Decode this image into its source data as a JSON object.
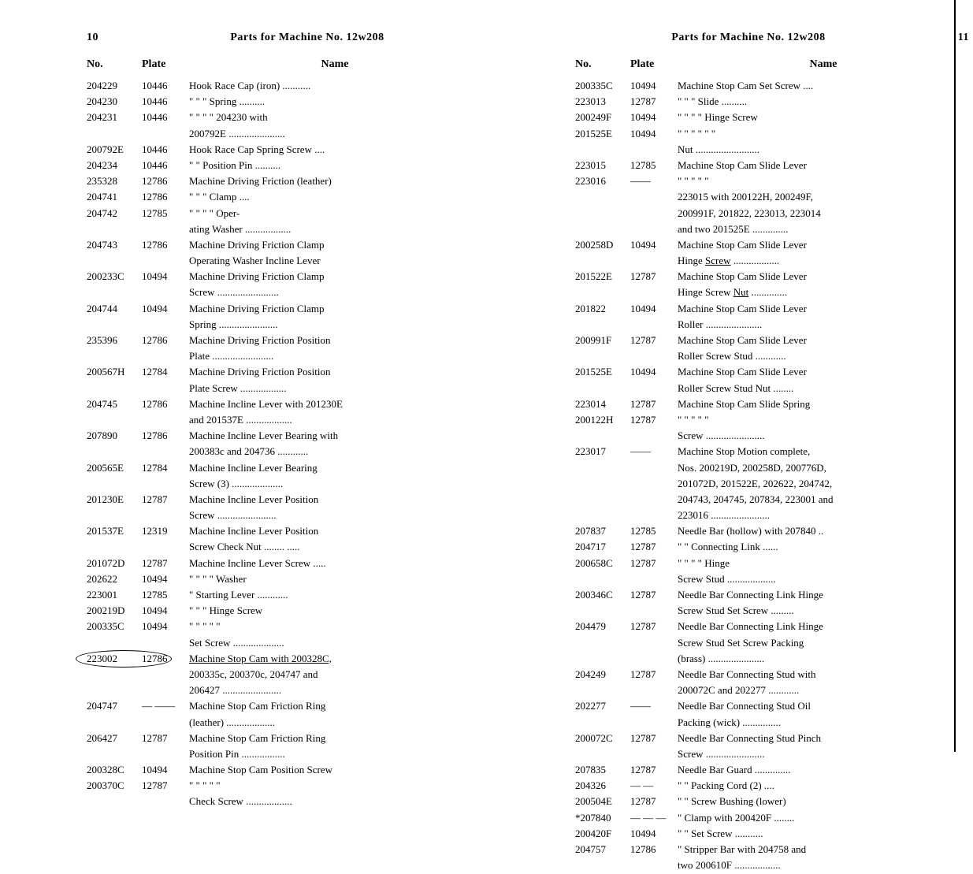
{
  "left": {
    "page_number": "10",
    "title": "Parts for Machine No. 12w208",
    "columns": {
      "no": "No.",
      "plate": "Plate",
      "name": "Name"
    },
    "rows": [
      {
        "no": "204229",
        "plate": "10446",
        "name": "Hook Race Cap (iron) ..........."
      },
      {
        "no": "204230",
        "plate": "10446",
        "name": "\"      \"      \"    Spring .........."
      },
      {
        "no": "204231",
        "plate": "10446",
        "name": "\"      \"      \"      \"    204230  with"
      },
      {
        "cont": "200792E ......................"
      },
      {
        "no": "200792E",
        "plate": "10446",
        "name": "Hook Race Cap Spring Screw ...."
      },
      {
        "no": "204234",
        "plate": "10446",
        "name": "\"      \"    Position Pin .........."
      },
      {
        "no": "235328",
        "plate": "12786",
        "name": "Machine Driving Friction (leather)"
      },
      {
        "no": "204741",
        "plate": "12786",
        "name": "\"         \"         \"    Clamp ...."
      },
      {
        "no": "204742",
        "plate": "12785",
        "name": "\"         \"         \"      \"    Oper-"
      },
      {
        "cont": "ating Washer .................."
      },
      {
        "no": "204743",
        "plate": "12786",
        "name": "Machine  Driving  Friction  Clamp"
      },
      {
        "cont": "Operating Washer Incline Lever"
      },
      {
        "no": "200233C",
        "plate": "10494",
        "name": "Machine  Driving  Friction  Clamp"
      },
      {
        "cont": "Screw ........................"
      },
      {
        "no": "204744",
        "plate": "10494",
        "name": "Machine  Driving  Friction  Clamp"
      },
      {
        "cont": "Spring ......................."
      },
      {
        "no": "235396",
        "plate": "12786",
        "name": "Machine Driving Friction Position"
      },
      {
        "cont": "Plate ........................"
      },
      {
        "no": "200567H",
        "plate": "12784",
        "name": "Machine Driving Friction Position"
      },
      {
        "cont": "Plate Screw .................."
      },
      {
        "no": "204745",
        "plate": "12786",
        "name": "Machine Incline Lever with 201230E"
      },
      {
        "cont": "and 201537E .................."
      },
      {
        "no": "207890",
        "plate": "12786",
        "name": "Machine Incline Lever Bearing with"
      },
      {
        "cont": "200383c and 204736 ............"
      },
      {
        "no": "200565E",
        "plate": "12784",
        "name": "Machine  Incline  Lever  Bearing"
      },
      {
        "cont": "Screw (3) ...................."
      },
      {
        "no": "201230E",
        "plate": "12787",
        "name": "Machine  Incline  Lever  Position"
      },
      {
        "cont": "Screw  ......................."
      },
      {
        "no": "201537E",
        "plate": "12319",
        "name": "Machine  Incline  Lever  Position"
      },
      {
        "cont": "Screw Check Nut ........ ....."
      },
      {
        "no": "201072D",
        "plate": "12787",
        "name": "Machine Incline Lever Screw ....."
      },
      {
        "no": "202622",
        "plate": "10494",
        "name": "\"      \"      \"     \"   Washer"
      },
      {
        "no": "223001",
        "plate": "12785",
        "name": "\"    Starting Lever ............"
      },
      {
        "no": "200219D",
        "plate": "10494",
        "name": "\"      \"       \"   Hinge  Screw"
      },
      {
        "no": "200335C",
        "plate": "10494",
        "name": "\"      \"       \"      \"      \""
      },
      {
        "cont": "Set Screw ...................."
      },
      {
        "no": "223002",
        "plate": "12786",
        "name": "Machine  Stop  Cam  with  200328C,",
        "circled": true,
        "underline": true
      },
      {
        "cont": "200335c,   200370c,   204747   and"
      },
      {
        "cont": "206427 ......................."
      },
      {
        "no": "204747",
        "plate": "— ——",
        "name": "Machine Stop Cam Friction Ring"
      },
      {
        "cont": "(leather)  ..................."
      },
      {
        "no": "206427",
        "plate": "12787",
        "name": "Machine Stop Cam Friction Ring"
      },
      {
        "cont": "Position Pin ................."
      },
      {
        "no": "200328C",
        "plate": "10494",
        "name": "Machine Stop Cam Position Screw"
      },
      {
        "no": "200370C",
        "plate": "12787",
        "name": "\"      \"      \"       \"      \""
      },
      {
        "cont": "Check Screw .................."
      }
    ]
  },
  "right": {
    "page_number": "11",
    "title": "Parts for Machine No. 12w208",
    "columns": {
      "no": "No.",
      "plate": "Plate",
      "name": "Name"
    },
    "rows": [
      {
        "no": "200335C",
        "plate": "10494",
        "name": "Machine Stop Cam Set Screw ...."
      },
      {
        "no": "223013",
        "plate": "12787",
        "name": "\"      \"      \"   Slide .........."
      },
      {
        "no": "200249F",
        "plate": "10494",
        "name": "\"      \"      \"    \"  Hinge Screw"
      },
      {
        "no": "201525E",
        "plate": "10494",
        "name": "\"      \"      \"    \"      \"      \""
      },
      {
        "cont": "Nut  ........................."
      },
      {
        "no": "223015",
        "plate": "12785",
        "name": "Machine  Stop  Cam  Slide  Lever"
      },
      {
        "no": "223016",
        "plate": "——",
        "name": "\"      \"      \"      \"      \""
      },
      {
        "cont": "223015   with   200122H,   200249F,"
      },
      {
        "cont": "200991F,  201822,  223013,  223014"
      },
      {
        "cont": "and two 201525E .............."
      },
      {
        "no": "200258D",
        "plate": "10494",
        "name": "Machine  Stop  Cam  Slide  Lever"
      },
      {
        "cont": "Hinge Screw ..................",
        "underline_word": "Screw"
      },
      {
        "no": "201522E",
        "plate": "12787",
        "name": "Machine  Stop  Cam  Slide  Lever"
      },
      {
        "cont": "Hinge Screw Nut ..............",
        "underline_word": "Nut"
      },
      {
        "no": "201822",
        "plate": "10494",
        "name": "Machine  Stop  Cam  Slide  Lever"
      },
      {
        "cont": "Roller  ......................"
      },
      {
        "no": "200991F",
        "plate": "12787",
        "name": "Machine  Stop  Cam  Slide  Lever"
      },
      {
        "cont": "Roller Screw Stud ............"
      },
      {
        "no": "201525E",
        "plate": "10494",
        "name": "Machine  Stop  Cam  Slide  Lever"
      },
      {
        "cont": "Roller Screw Stud Nut ........"
      },
      {
        "no": "223014",
        "plate": "12787",
        "name": "Machine  Stop  Cam  Slide  Spring"
      },
      {
        "no": "200122H",
        "plate": "12787",
        "name": "\"      \"      \"      \"      \""
      },
      {
        "cont": "Screw  ......................."
      },
      {
        "no": "223017",
        "plate": "——",
        "name": "Machine  Stop  Motion  complete,"
      },
      {
        "cont": "Nos.  200219D,  200258D,  200776D,"
      },
      {
        "cont": "201072D,  201522E,  202622,  204742,"
      },
      {
        "cont": "204743, 204745, 207834, 223001 and"
      },
      {
        "cont": "223016 ......................."
      },
      {
        "no": "207837",
        "plate": "12785",
        "name": "Needle Bar (hollow) with 207840 .."
      },
      {
        "no": "204717",
        "plate": "12787",
        "name": "\"     \"   Connecting Link ......"
      },
      {
        "no": "200658C",
        "plate": "12787",
        "name": "\"     \"        \"       \"    Hinge"
      },
      {
        "cont": "Screw Stud ..................."
      },
      {
        "no": "200346C",
        "plate": "12787",
        "name": "Needle Bar Connecting Link Hinge"
      },
      {
        "cont": "Screw Stud Set Screw ........."
      },
      {
        "no": "204479",
        "plate": "12787",
        "name": "Needle Bar Connecting Link Hinge"
      },
      {
        "cont": "Screw  Stud  Set  Screw  Packing"
      },
      {
        "cont": "(brass) ......................"
      },
      {
        "no": "204249",
        "plate": "12787",
        "name": "Needle Bar Connecting Stud with"
      },
      {
        "cont": "200072C and 202277 ............"
      },
      {
        "no": "202277",
        "plate": "——",
        "name": "Needle  Bar  Connecting  Stud  Oil"
      },
      {
        "cont": "Packing (wick) ..............."
      },
      {
        "no": "200072C",
        "plate": "12787",
        "name": "Needle Bar Connecting Stud Pinch"
      },
      {
        "cont": "Screw  ......................."
      },
      {
        "no": "207835",
        "plate": "12787",
        "name": "Needle Bar Guard .............."
      },
      {
        "no": "204326",
        "plate": "— —",
        "name": "\"     \"   Packing Cord (2) ...."
      },
      {
        "no": "200504E",
        "plate": "12787",
        "name": "\"     \"   Screw Bushing (lower)"
      },
      {
        "no": "*207840",
        "plate": "— — —",
        "name": "\"   Clamp with 200420F ........"
      },
      {
        "no": "200420F",
        "plate": "10494",
        "name": "\"     \"   Set Screw ..........."
      },
      {
        "no": "204757",
        "plate": "12786",
        "name": "\"   Stripper Bar with 204758 and"
      },
      {
        "cont": "two 200610F .................."
      }
    ]
  }
}
